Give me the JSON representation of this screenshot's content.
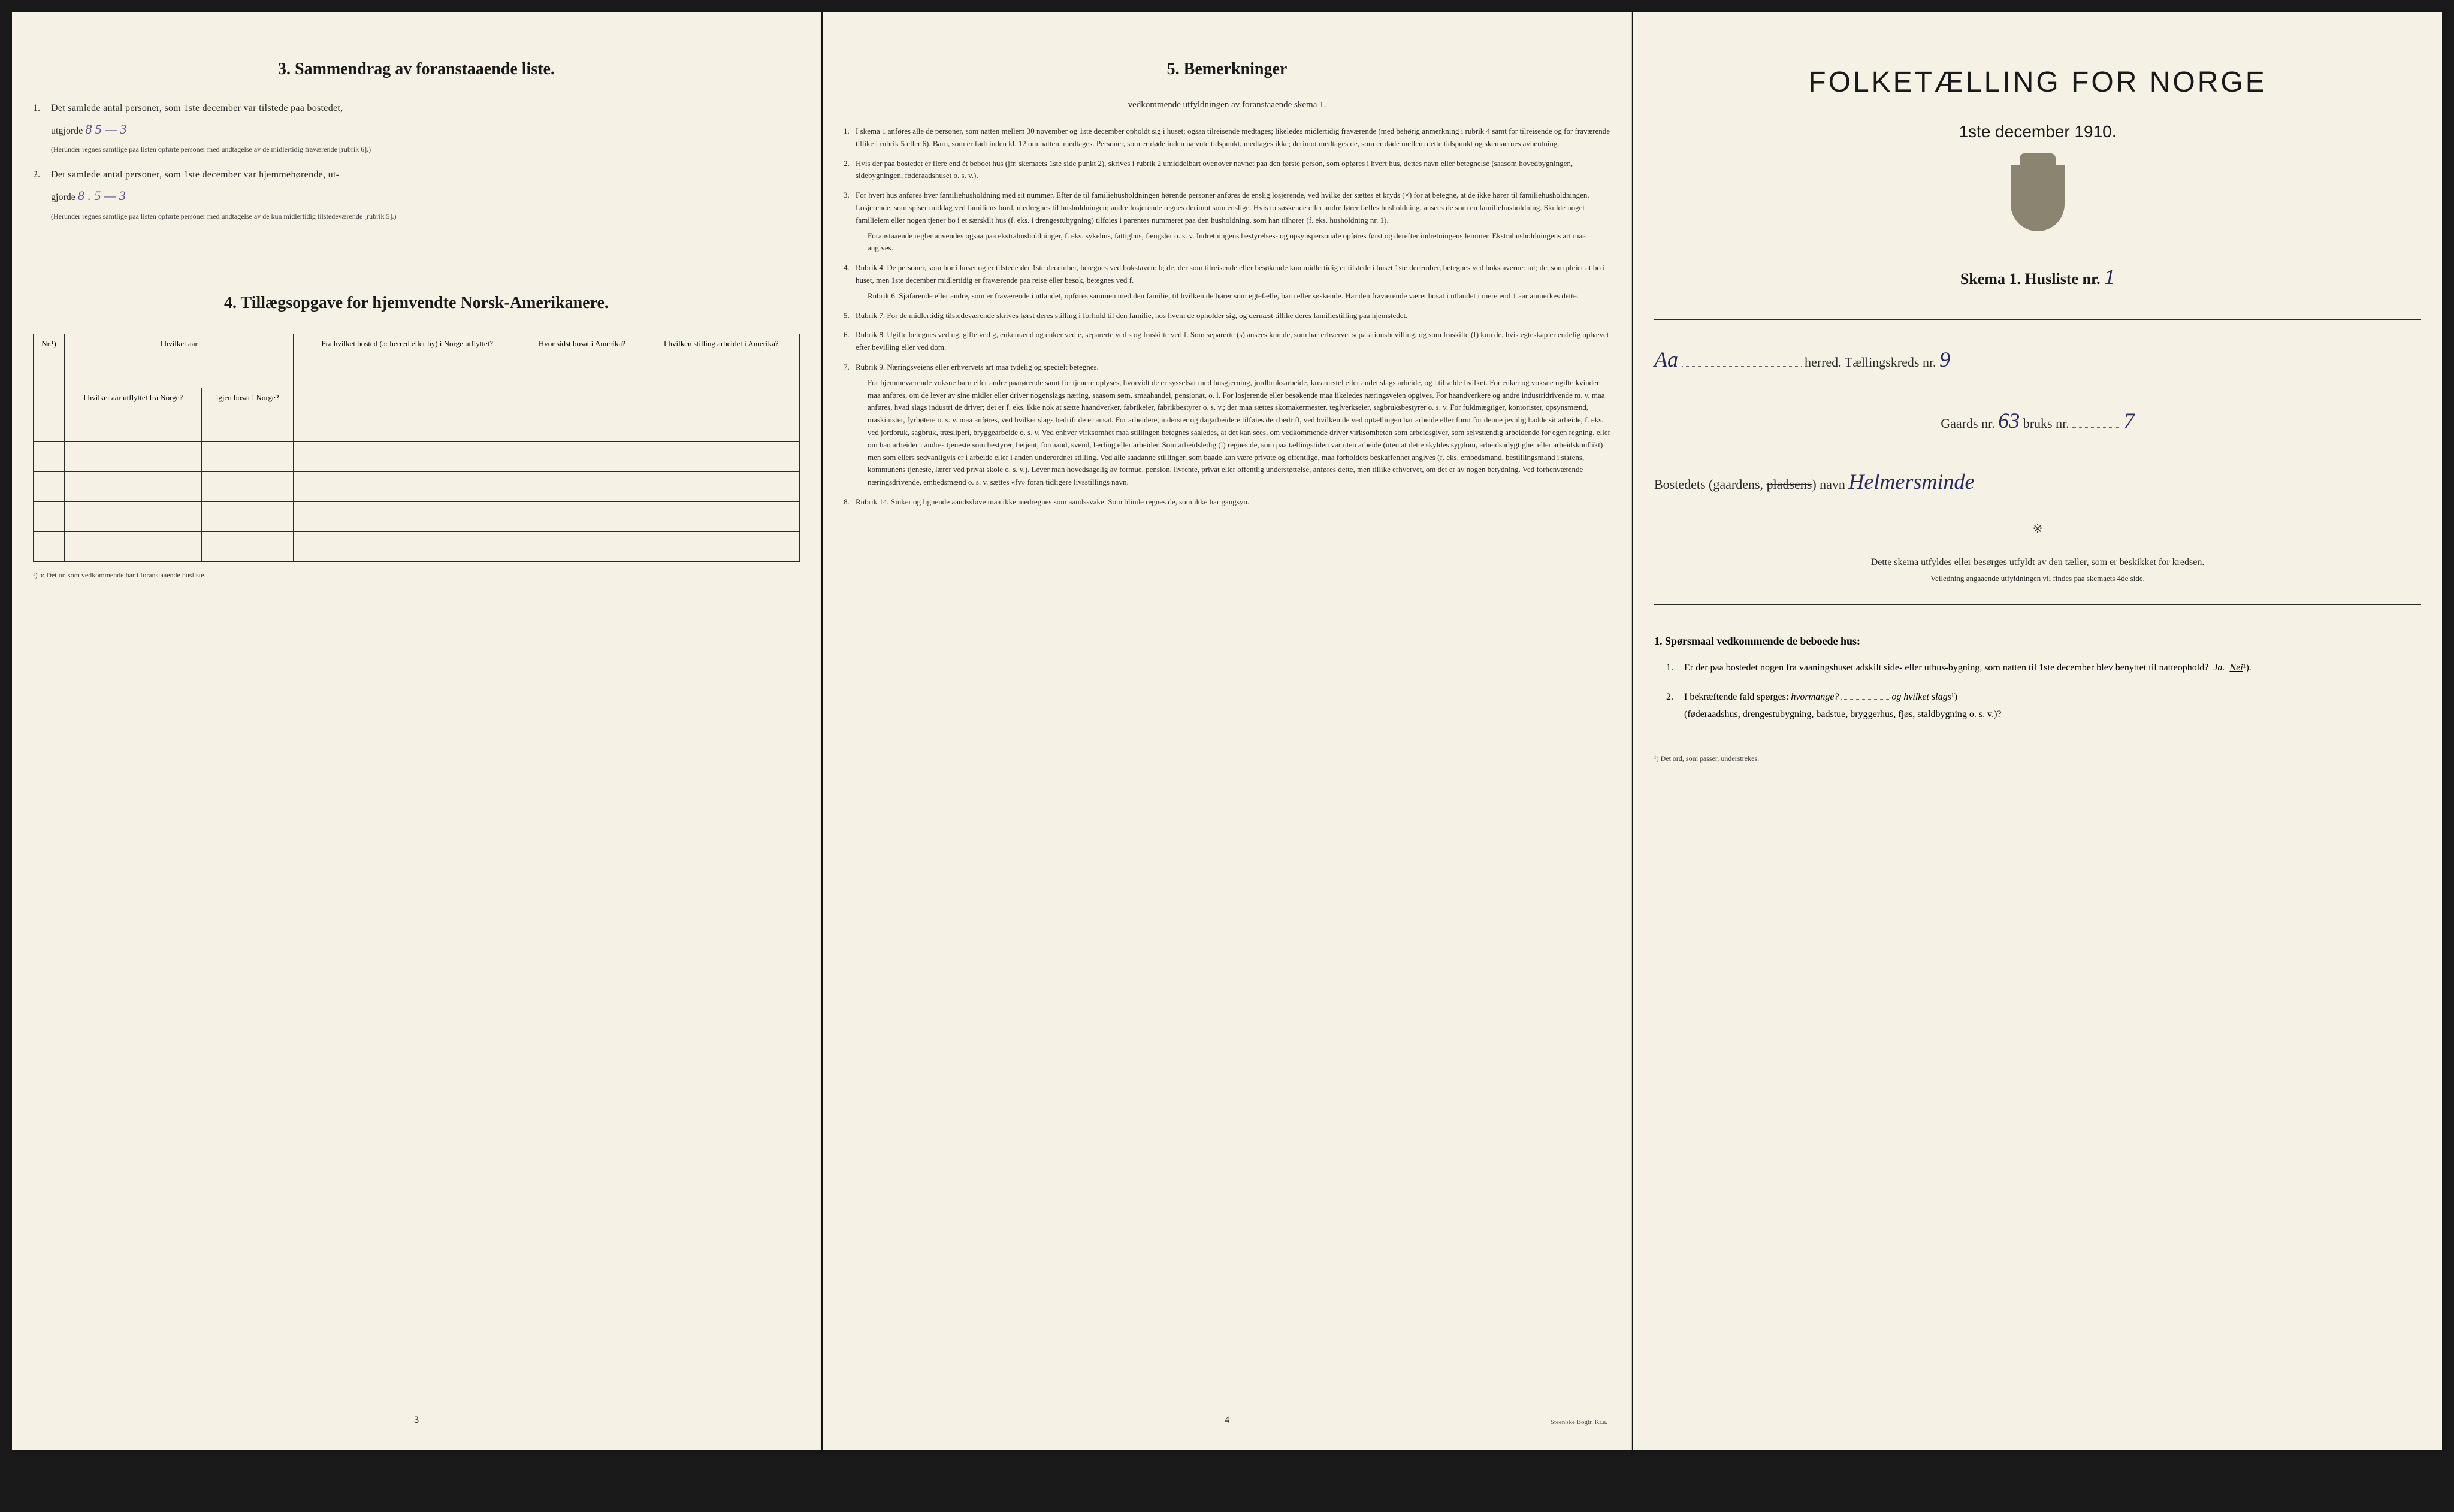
{
  "page3": {
    "section3_title": "3. Sammendrag av foranstaaende liste.",
    "item1_num": "1.",
    "item1_text": "Det samlede antal personer, som 1ste december var tilstede paa bostedet,",
    "item1_line2": "utgjorde",
    "item1_value": "8   5 — 3",
    "item1_note": "(Herunder regnes samtlige paa listen opførte personer med undtagelse av de midlertidig fraværende [rubrik 6].)",
    "item2_num": "2.",
    "item2_text": "Det samlede antal personer, som 1ste december var hjemmehørende, ut-",
    "item2_line2": "gjorde",
    "item2_value": "8  . 5 — 3",
    "item2_note": "(Herunder regnes samtlige paa listen opførte personer med undtagelse av de kun midlertidig tilstedeværende [rubrik 5].)",
    "section4_title": "4. Tillægsopgave for hjemvendte Norsk-Amerikanere.",
    "table_headers": {
      "col1": "Nr.¹)",
      "col2": "I hvilket aar\nutflyttet fra\nNorge?",
      "col3": "igjen\nbosat\ni Norge?",
      "col4": "Fra hvilket bosted\n(ɔ: herred eller by)\ni Norge utflyttet?",
      "col5": "Hvor sidst\nbosat\ni Amerika?",
      "col6": "I hvilken stilling\narbeidet\ni Amerika?"
    },
    "footnote": "¹) ɔ: Det nr. som vedkommende har i foranstaaende husliste.",
    "page_num": "3"
  },
  "page4": {
    "title": "5. Bemerkninger",
    "subtitle": "vedkommende utfyldningen av foranstaaende skema 1.",
    "items": [
      {
        "num": "1.",
        "text": "I skema 1 anføres alle de personer, som natten mellem 30 november og 1ste december opholdt sig i huset; ogsaa tilreisende medtages; likeledes midlertidig fraværende (med behørig anmerkning i rubrik 4 samt for tilreisende og for fraværende tillike i rubrik 5 eller 6). Barn, som er født inden kl. 12 om natten, medtages. Personer, som er døde inden nævnte tidspunkt, medtages ikke; derimot medtages de, som er døde mellem dette tidspunkt og skemaernes avhentning."
      },
      {
        "num": "2.",
        "text": "Hvis der paa bostedet er flere end ét beboet hus (jfr. skemaets 1ste side punkt 2), skrives i rubrik 2 umiddelbart ovenover navnet paa den første person, som opføres i hvert hus, dettes navn eller betegnelse (saasom hovedbygningen, sidebygningen, føderaadshuset o. s. v.)."
      },
      {
        "num": "3.",
        "text": "For hvert hus anføres hver familiehusholdning med sit nummer. Efter de til familiehusholdningen hørende personer anføres de enslig losjerende, ved hvilke der sættes et kryds (×) for at betegne, at de ikke hører til familiehusholdningen. Losjerende, som spiser middag ved familiens bord, medregnes til husholdningen; andre losjerende regnes derimot som enslige. Hvis to søskende eller andre fører fælles husholdning, ansees de som en familiehusholdning. Skulde noget familielem eller nogen tjener bo i et særskilt hus (f. eks. i drengestubygning) tilføies i parentes nummeret paa den husholdning, som han tilhører (f. eks. husholdning nr. 1).",
        "sub": "Foranstaaende regler anvendes ogsaa paa ekstrahusholdninger, f. eks. sykehus, fattighus, fængsler o. s. v. Indretningens bestyrelses- og opsynspersonale opføres først og derefter indretningens lemmer. Ekstrahusholdningens art maa angives."
      },
      {
        "num": "4.",
        "text": "Rubrik 4. De personer, som bor i huset og er tilstede der 1ste december, betegnes ved bokstaven: b; de, der som tilreisende eller besøkende kun midlertidig er tilstede i huset 1ste december, betegnes ved bokstaverne: mt; de, som pleier at bo i huset, men 1ste december midlertidig er fraværende paa reise eller besøk, betegnes ved f.",
        "sub": "Rubrik 6. Sjøfarende eller andre, som er fraværende i utlandet, opføres sammen med den familie, til hvilken de hører som egtefælle, barn eller søskende. Har den fraværende været bosat i utlandet i mere end 1 aar anmerkes dette."
      },
      {
        "num": "5.",
        "text": "Rubrik 7. For de midlertidig tilstedeværende skrives først deres stilling i forhold til den familie, hos hvem de opholder sig, og dernæst tillike deres familiestilling paa hjemstedet."
      },
      {
        "num": "6.",
        "text": "Rubrik 8. Ugifte betegnes ved ug, gifte ved g, enkemænd og enker ved e, separerte ved s og fraskilte ved f. Som separerte (s) ansees kun de, som har erhvervet separationsbevilling, og som fraskilte (f) kun de, hvis egteskap er endelig ophævet efter bevilling eller ved dom."
      },
      {
        "num": "7.",
        "text": "Rubrik 9. Næringsveiens eller erhvervets art maa tydelig og specielt betegnes.",
        "sub": "For hjemmeværende voksne barn eller andre paarørende samt for tjenere oplyses, hvorvidt de er sysselsat med husgjerning, jordbruksarbeide, kreaturstel eller andet slags arbeide, og i tilfælde hvilket. For enker og voksne ugifte kvinder maa anføres, om de lever av sine midler eller driver nogenslags næring, saasom søm, smaahandel, pensionat, o. l. For losjerende eller besøkende maa likeledes næringsveien opgives. For haandverkere og andre industridrivende m. v. maa anføres, hvad slags industri de driver; det er f. eks. ikke nok at sætte haandverker, fabrikeier, fabrikbestyrer o. s. v.; der maa sættes skomakermester, teglverkseier, sagbruksbestyrer o. s. v. For fuldmægtiger, kontorister, opsynsmænd, maskinister, fyrbøtere o. s. v. maa anføres, ved hvilket slags bedrift de er ansat. For arbeidere, inderster og dagarbeidere tilføies den bedrift, ved hvilken de ved optællingen har arbeide eller forut for denne jevnlig hadde sit arbeide, f. eks. ved jordbruk, sagbruk, træsliperi, bryggearbeide o. s. v. Ved enhver virksomhet maa stillingen betegnes saaledes, at det kan sees, om vedkommende driver virksomheten som arbeidsgiver, som selvstændig arbeidende for egen regning, eller om han arbeider i andres tjeneste som bestyrer, betjent, formand, svend, lærling eller arbeider. Som arbeidsledig (l) regnes de, som paa tællingstiden var uten arbeide (uten at dette skyldes sygdom, arbeidsudygtighet eller arbeidskonflikt) men som ellers sedvanligvis er i arbeide eller i anden underordnet stilling. Ved alle saadanne stillinger, som baade kan være private og offentlige, maa forholdets beskaffenhet angives (f. eks. embedsmand, bestillingsmand i statens, kommunens tjeneste, lærer ved privat skole o. s. v.). Lever man hovedsagelig av formue, pension, livrente, privat eller offentlig understøttelse, anføres dette, men tillike erhvervet, om det er av nogen betydning. Ved forhenværende næringsdrivende, embedsmænd o. s. v. sættes «fv» foran tidligere livsstillings navn."
      },
      {
        "num": "8.",
        "text": "Rubrik 14. Sinker og lignende aandssløve maa ikke medregnes som aandssvake. Som blinde regnes de, som ikke har gangsyn."
      }
    ],
    "page_num": "4",
    "imprint": "Steen'ske Bogtr. Kr.a."
  },
  "page_right": {
    "main_title": "FOLKETÆLLING FOR NORGE",
    "subtitle": "1ste december 1910.",
    "skema": "Skema 1.   Husliste nr.",
    "husliste_nr": "1",
    "herred_label": "herred.  Tællingskreds nr.",
    "herred_value": "Aa",
    "kreds_nr": "9",
    "gaards_label": "Gaards nr.",
    "gaards_nr": "63",
    "bruks_label": "bruks nr.",
    "bruks_nr": "7",
    "bosted_label": "Bostedets (gaardens,",
    "bosted_struck": "pladsens",
    "bosted_label2": ") navn",
    "bosted_value": "Helmersminde",
    "instructions": "Dette skema utfyldes eller besørges utfyldt av den tæller, som er beskikket for kredsen.",
    "instructions_sub": "Veiledning angaaende utfyldningen vil findes paa skemaets 4de side.",
    "q_heading": "1. Spørsmaal vedkommende de beboede hus:",
    "q1_num": "1.",
    "q1_text": "Er der paa bostedet nogen fra vaaningshuset adskilt side- eller uthus-bygning, som natten til 1ste december blev benyttet til natteophold?",
    "q1_ja": "Ja.",
    "q1_nei": "Nei",
    "q1_sup": "¹).",
    "q2_num": "2.",
    "q2_text": "I bekræftende fald spørges:",
    "q2_hvormange": "hvormange?",
    "q2_og": "og",
    "q2_hvilket": "hvilket slags",
    "q2_sup": "¹)",
    "q2_paren": "(føderaadshus, drengestubygning, badstue, bryggerhus, fjøs, staldbygning o. s. v.)?",
    "footnote": "¹) Det ord, som passer, understrekes."
  },
  "colors": {
    "paper": "#f5f1e4",
    "text": "#2a2a2a",
    "handwriting": "#5b4a8a",
    "border": "#2a2a2a"
  }
}
